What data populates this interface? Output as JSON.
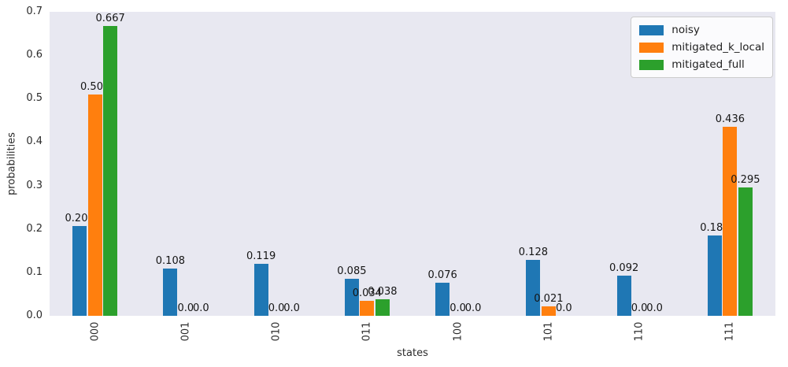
{
  "figure": {
    "background_color": "#ffffff",
    "plot_background_color": "#e8e8f1",
    "text_color": "#2b2b2b"
  },
  "chart_data": {
    "type": "bar",
    "title": "",
    "xlabel": "states",
    "ylabel": "probabilities",
    "categories": [
      "000",
      "001",
      "010",
      "011",
      "100",
      "101",
      "110",
      "111"
    ],
    "series": [
      {
        "name": "noisy",
        "color": "#1f77b4",
        "values": [
          0.207,
          0.108,
          0.119,
          0.085,
          0.076,
          0.128,
          0.092,
          0.185
        ]
      },
      {
        "name": "mitigated_k_local",
        "color": "#ff7f0e",
        "values": [
          0.509,
          0.0,
          0.0,
          0.034,
          0.0,
          0.021,
          0.0,
          0.436
        ]
      },
      {
        "name": "mitigated_full",
        "color": "#2ca02c",
        "values": [
          0.667,
          0.0,
          0.0,
          0.038,
          0.0,
          0.0,
          0.0,
          0.295
        ]
      }
    ],
    "ylim": [
      0,
      0.7
    ],
    "yticks": [
      "0.0",
      "0.1",
      "0.2",
      "0.3",
      "0.4",
      "0.5",
      "0.6",
      "0.7"
    ],
    "grid": false,
    "bar_labels": true,
    "x_tick_rotation": 90,
    "legend_position": "upper right"
  }
}
